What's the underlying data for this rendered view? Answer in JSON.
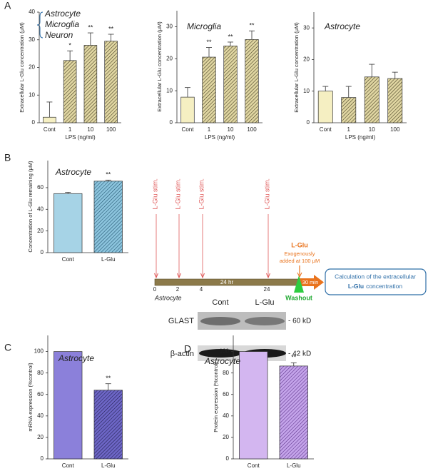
{
  "panels": [
    "A",
    "B",
    "C",
    "D"
  ],
  "chart_data": [
    {
      "type": "bar",
      "title": [
        "Astrocyte",
        "Microglia",
        "Neuron"
      ],
      "ylabel": "Extracellular L-Glu concentration (μM)",
      "xlabel": "LPS (ng/ml)",
      "categories": [
        "Cont",
        "1",
        "10",
        "100"
      ],
      "values": [
        2,
        22.5,
        28,
        29.5
      ],
      "errors": [
        5.5,
        3.5,
        4.5,
        2.5
      ],
      "annotations": [
        null,
        "*",
        "**",
        "**"
      ],
      "colors": [
        "#f5efc2",
        "#e0d6a2",
        "#e0d6a2",
        "#e0d6a2"
      ],
      "hatch": [
        false,
        true,
        true,
        true
      ],
      "hatch_color": "#3b351b",
      "ylim": [
        0,
        40
      ],
      "yticks": [
        0,
        10,
        20,
        30,
        40
      ]
    },
    {
      "type": "bar",
      "title": [
        "Microglia"
      ],
      "ylabel": "Extracellular L-Glu concentration (μM)",
      "xlabel": "LPS (ng/ml)",
      "categories": [
        "Cont",
        "1",
        "10",
        "100"
      ],
      "values": [
        8,
        20.5,
        24,
        26
      ],
      "errors": [
        3,
        3,
        1.2,
        2.7
      ],
      "annotations": [
        null,
        "**",
        "**",
        "**"
      ],
      "colors": [
        "#f5efc2",
        "#e0d6a2",
        "#e0d6a2",
        "#e0d6a2"
      ],
      "hatch": [
        false,
        true,
        true,
        true
      ],
      "hatch_color": "#3b351b",
      "ylim": [
        0,
        35
      ],
      "yticks": [
        0,
        10,
        20,
        30
      ]
    },
    {
      "type": "bar",
      "title": [
        "Astrocyte"
      ],
      "ylabel": "Extracellular L-Glu concentration (μM)",
      "xlabel": "LPS (ng/ml)",
      "categories": [
        "Cont",
        "1",
        "10",
        "100"
      ],
      "values": [
        10,
        8,
        14.5,
        14
      ],
      "errors": [
        1.5,
        3.5,
        4,
        2
      ],
      "annotations": [
        null,
        null,
        null,
        null
      ],
      "colors": [
        "#f5efc2",
        "#e0d6a2",
        "#e0d6a2",
        "#e0d6a2"
      ],
      "hatch": [
        false,
        true,
        true,
        true
      ],
      "hatch_color": "#3b351b",
      "ylim": [
        0,
        35
      ],
      "yticks": [
        0,
        10,
        20,
        30
      ]
    },
    {
      "type": "bar",
      "title": [
        "Astrocyte"
      ],
      "ylabel": "Concentration of L-Glu remaining (μM)",
      "categories": [
        "Cont",
        "L-Glu"
      ],
      "values": [
        54.5,
        66
      ],
      "errors": [
        1.2,
        1
      ],
      "annotations": [
        null,
        "**"
      ],
      "colors": [
        "#a6d3e6",
        "#8cc4dd"
      ],
      "hatch": [
        false,
        true
      ],
      "hatch_color": "#1d4f6a",
      "ylim": [
        0,
        85
      ],
      "yticks": [
        0,
        20,
        40,
        60
      ]
    },
    {
      "type": "bar",
      "title": [
        "Astrocyte"
      ],
      "ylabel": "mRNA expression (%control)",
      "categories": [
        "Cont",
        "L-Glu"
      ],
      "values": [
        100,
        64
      ],
      "errors": [
        null,
        6
      ],
      "annotations": [
        null,
        "**"
      ],
      "colors": [
        "#8b80da",
        "#6d66c6"
      ],
      "hatch": [
        false,
        true
      ],
      "hatch_color": "#1f1d4a",
      "ylim": [
        0,
        115
      ],
      "yticks": [
        0,
        20,
        40,
        60,
        80,
        100
      ]
    },
    {
      "type": "bar",
      "title": [
        "Astrocyte"
      ],
      "ylabel": "Protein expression (%control)",
      "categories": [
        "Cont",
        "L-Glu"
      ],
      "values": [
        100,
        86.5
      ],
      "errors": [
        null,
        3
      ],
      "annotations": [
        null,
        "**"
      ],
      "colors": [
        "#d3b6f0",
        "#c4a4ea"
      ],
      "hatch": [
        false,
        true
      ],
      "hatch_color": "#5a2f86",
      "ylim": [
        0,
        115
      ],
      "yticks": [
        0,
        20,
        40,
        60,
        80,
        100
      ]
    }
  ],
  "timeline": {
    "stim_labels": [
      "L-Glu stim.",
      "L-Glu stim.",
      "L-Glu stim.",
      "L-Glu stim."
    ],
    "ticks": [
      0,
      2,
      4,
      24
    ],
    "duration": "24 hr",
    "cell": "Astrocyte",
    "addition": "L-Glu",
    "addition_note": [
      "Exogenously",
      "added at 100 μM"
    ],
    "incubation": "30 min",
    "washout": "Washout",
    "result": [
      "Calculation of the extracellular",
      "L-Glu",
      "concentration"
    ]
  },
  "blot": {
    "lanes": [
      "Cont",
      "L-Glu"
    ],
    "proteins": [
      "GLAST",
      "β-actin"
    ],
    "sizes": [
      "- 60 kD",
      "- 42 kD"
    ]
  }
}
